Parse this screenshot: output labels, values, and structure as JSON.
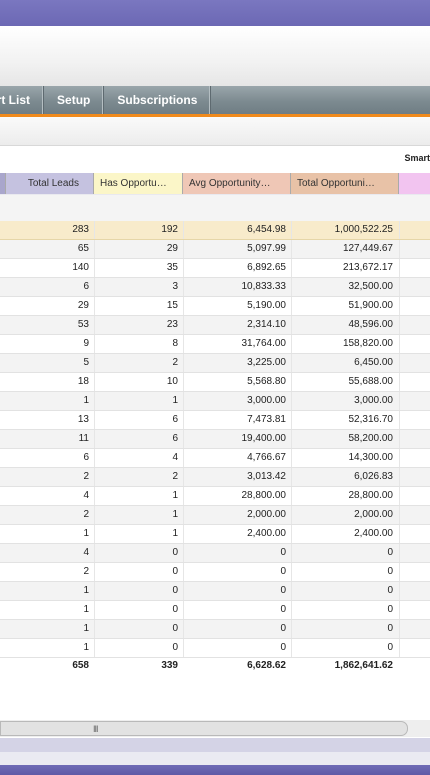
{
  "nav": {
    "items": [
      {
        "label": "art List"
      },
      {
        "label": "Setup"
      },
      {
        "label": "Subscriptions"
      }
    ]
  },
  "toolbar": {
    "smart_label": "Smart"
  },
  "table": {
    "headers": [
      "Total Leads",
      "Has Opportu…",
      "Avg Opportunity…",
      "Total Opportuni…"
    ],
    "rows": [
      [
        "283",
        "192",
        "6,454.98",
        "1,000,522.25"
      ],
      [
        "65",
        "29",
        "5,097.99",
        "127,449.67"
      ],
      [
        "140",
        "35",
        "6,892.65",
        "213,672.17"
      ],
      [
        "6",
        "3",
        "10,833.33",
        "32,500.00"
      ],
      [
        "29",
        "15",
        "5,190.00",
        "51,900.00"
      ],
      [
        "53",
        "23",
        "2,314.10",
        "48,596.00"
      ],
      [
        "9",
        "8",
        "31,764.00",
        "158,820.00"
      ],
      [
        "5",
        "2",
        "3,225.00",
        "6,450.00"
      ],
      [
        "18",
        "10",
        "5,568.80",
        "55,688.00"
      ],
      [
        "1",
        "1",
        "3,000.00",
        "3,000.00"
      ],
      [
        "13",
        "6",
        "7,473.81",
        "52,316.70"
      ],
      [
        "11",
        "6",
        "19,400.00",
        "58,200.00"
      ],
      [
        "6",
        "4",
        "4,766.67",
        "14,300.00"
      ],
      [
        "2",
        "2",
        "3,013.42",
        "6,026.83"
      ],
      [
        "4",
        "1",
        "28,800.00",
        "28,800.00"
      ],
      [
        "2",
        "1",
        "2,000.00",
        "2,000.00"
      ],
      [
        "1",
        "1",
        "2,400.00",
        "2,400.00"
      ],
      [
        "4",
        "0",
        "0",
        "0"
      ],
      [
        "2",
        "0",
        "0",
        "0"
      ],
      [
        "1",
        "0",
        "0",
        "0"
      ],
      [
        "1",
        "0",
        "0",
        "0"
      ],
      [
        "1",
        "0",
        "0",
        "0"
      ],
      [
        "1",
        "0",
        "0",
        "0"
      ]
    ],
    "totals": [
      "658",
      "339",
      "6,628.62",
      "1,862,641.62"
    ]
  },
  "scrollbar": {
    "grip": "III"
  },
  "colors": {
    "header_purple": "#6c68b4",
    "nav_gray": "#7c8a90",
    "accent_orange": "#f08a1c",
    "highlight_row": "#f8ebcb"
  }
}
